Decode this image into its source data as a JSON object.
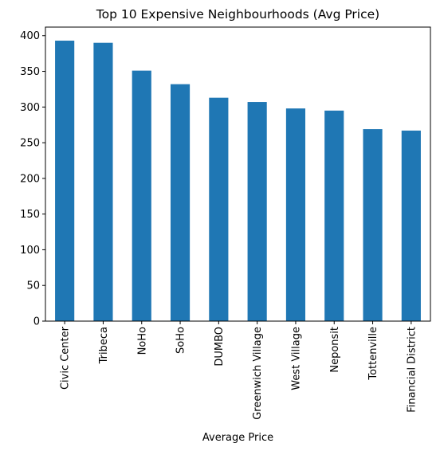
{
  "chart_data": {
    "type": "bar",
    "title": "Top 10 Expensive Neighbourhoods (Avg Price)",
    "xlabel": "Average Price",
    "ylabel": "",
    "categories": [
      "Civic Center",
      "Tribeca",
      "NoHo",
      "SoHo",
      "DUMBO",
      "Greenwich Village",
      "West Village",
      "Neponsit",
      "Tottenville",
      "Financial District"
    ],
    "values": [
      393,
      390,
      351,
      332,
      313,
      307,
      298,
      295,
      269,
      267
    ],
    "ylim": [
      0,
      412
    ],
    "yticks": [
      0,
      50,
      100,
      150,
      200,
      250,
      300,
      350,
      400
    ],
    "grid": false,
    "legend": "none",
    "bar_color": "#1f77b4"
  }
}
